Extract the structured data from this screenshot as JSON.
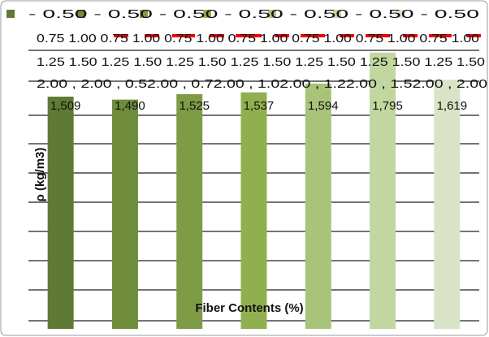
{
  "chart_data": {
    "type": "bar",
    "y_label": "ρ (kg/m3)",
    "x_label": "Fiber Contents (%)",
    "legend_lines": [
      "-     0.50 -     0.50 -     0.50 -     0.50 -     0.50 -     0.50 -     0.50",
      "0.75  1.00 0.75  1.00 0.75  1.00 0.75  1.00 0.75  1.00 0.75  1.00 0.75  1.00",
      "1.25  1.50 1.25  1.50 1.25  1.50 1.25  1.50 1.25  1.50 1.25  1.50 1.25  1.50",
      "2.00 , 2.00 , 0.52.00 , 0.72.00 , 1.02.00 , 1.22.00 , 1.52.00 , 2.00"
    ],
    "categories": [
      null,
      null,
      null,
      null,
      null,
      null,
      null
    ],
    "values": [
      1509,
      1490,
      1525,
      1537,
      1594,
      1795,
      1619
    ],
    "value_labels": [
      "1,509",
      "1,490",
      "1,525",
      "1,537",
      "1,594",
      "1,795",
      "1,619"
    ],
    "colors": [
      "#5f7a35",
      "#6e8c3c",
      "#7d9c45",
      "#90b050",
      "#a8c47a",
      "#c2d6a0",
      "#d9e4c6"
    ],
    "ylim": [
      0,
      2000
    ]
  }
}
